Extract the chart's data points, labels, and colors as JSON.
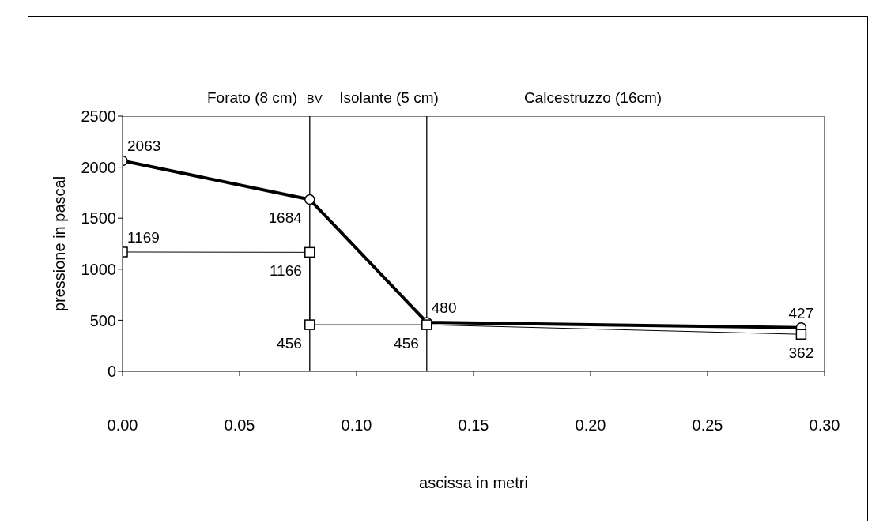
{
  "chart_data": {
    "type": "line",
    "xlabel": "ascissa in metri",
    "ylabel": "pressione in pascal",
    "xlim": [
      0,
      0.3
    ],
    "xticks": [
      {
        "value": 0,
        "label": "0.00"
      },
      {
        "value": 0.05,
        "label": "0.05"
      },
      {
        "value": 0.1,
        "label": "0.10"
      },
      {
        "value": 0.15,
        "label": "0.15"
      },
      {
        "value": 0.2,
        "label": "0.20"
      },
      {
        "value": 0.25,
        "label": "0.25"
      },
      {
        "value": 0.3,
        "label": "0.30"
      }
    ],
    "ylim": [
      0,
      2500
    ],
    "yticks": [
      0,
      500,
      1000,
      1500,
      2000,
      2500
    ],
    "series": [
      {
        "color": "#000000",
        "marker": "circle",
        "x": [
          0,
          0.08,
          0.13,
          0.29
        ],
        "values": [
          2063,
          1684,
          480,
          427
        ]
      },
      {
        "color": "#000000",
        "marker": "square",
        "x": [
          0,
          0.08,
          0.08,
          0.13,
          0.29
        ],
        "values": [
          1169,
          1166,
          456,
          456,
          362
        ]
      }
    ],
    "ref_lines": [
      {
        "axis": "x",
        "value": 0.08,
        "label": "BV",
        "color": "#000000"
      },
      {
        "axis": "x",
        "value": 0.13,
        "color": "#000000"
      }
    ],
    "annotations": [
      "Forato (8 cm)",
      "Isolante (5 cm)",
      "Calcestruzzo (16cm)"
    ],
    "data_labels": true,
    "grid": false,
    "line_style": "solid"
  }
}
